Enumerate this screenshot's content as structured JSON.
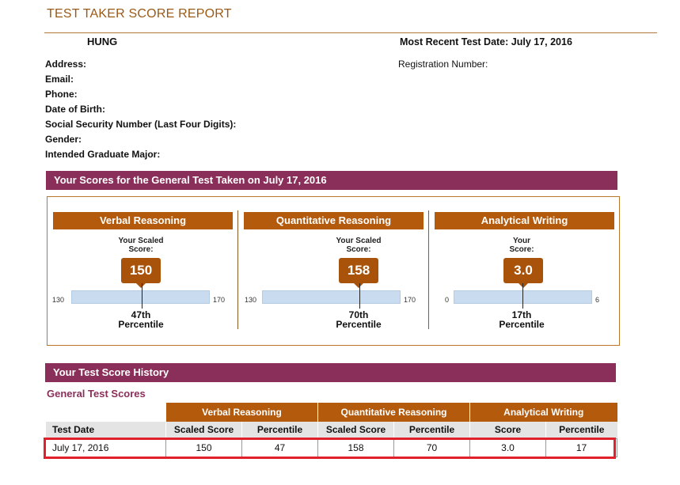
{
  "header": {
    "title": "TEST TAKER SCORE REPORT",
    "name": "HUNG",
    "recent_test_date": "Most Recent Test Date: July 17, 2016",
    "registration_label": "Registration Number:"
  },
  "fields": [
    "Address:",
    "Email:",
    "Phone:",
    "Date of Birth:",
    "Social Security Number (Last Four Digits):",
    "Gender:",
    "Intended Graduate Major:"
  ],
  "scores_section": {
    "title": "Your Scores for the General Test Taken on July 17, 2016",
    "panels": [
      {
        "name": "Verbal Reasoning",
        "label_line1": "Your Scaled",
        "label_line2": "Score:",
        "score": "150",
        "min": "130",
        "max": "170",
        "score_value": 150,
        "range": [
          130,
          170
        ],
        "percentile_line1": "47th",
        "percentile_line2": "Percentile"
      },
      {
        "name": "Quantitative Reasoning",
        "label_line1": "Your Scaled",
        "label_line2": "Score:",
        "score": "158",
        "min": "130",
        "max": "170",
        "score_value": 158,
        "range": [
          130,
          170
        ],
        "percentile_line1": "70th",
        "percentile_line2": "Percentile"
      },
      {
        "name": "Analytical Writing",
        "label_line1": "Your",
        "label_line2": "Score:",
        "score": "3.0",
        "min": "0",
        "max": "6",
        "score_value": 3.0,
        "range": [
          0,
          6
        ],
        "percentile_line1": "17th",
        "percentile_line2": "Percentile"
      }
    ]
  },
  "history": {
    "title": "Your Test Score History",
    "subtitle": "General Test Scores",
    "groups": [
      "Verbal Reasoning",
      "Quantitative Reasoning",
      "Analytical Writing"
    ],
    "columns": [
      "Test Date",
      "Scaled Score",
      "Percentile",
      "Scaled Score",
      "Percentile",
      "Score",
      "Percentile"
    ],
    "rows": [
      [
        "July 17, 2016",
        "150",
        "47",
        "158",
        "70",
        "3.0",
        "17"
      ]
    ]
  },
  "colors": {
    "accent_orange": "#b45a0c",
    "section_purple": "#8a2f5a",
    "scale_blue": "#c8dbef",
    "highlight_red": "#e0202a",
    "title_brown": "#9a5a16"
  }
}
